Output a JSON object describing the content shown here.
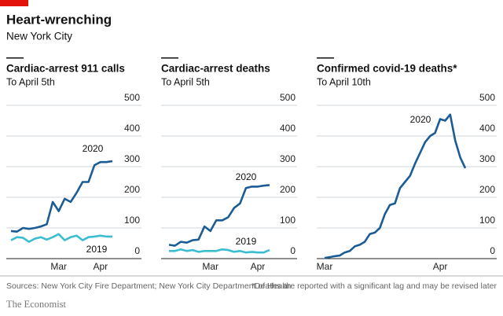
{
  "header": {
    "title": "Heart-wrenching",
    "subtitle": "New York City"
  },
  "chart_data": [
    {
      "type": "line",
      "title": "Cardiac-arrest 911 calls",
      "subtitle": "To April 5th",
      "categories": [
        null,
        null,
        null,
        null,
        null,
        null,
        null,
        null,
        "Mar",
        null,
        null,
        null,
        null,
        null,
        null,
        "Apr",
        null,
        null
      ],
      "series": [
        {
          "name": "2020",
          "color": "#1b5c95",
          "values": [
            90,
            88,
            100,
            97,
            100,
            105,
            112,
            185,
            155,
            195,
            185,
            215,
            250,
            250,
            305,
            315,
            315,
            318
          ]
        },
        {
          "name": "2019",
          "color": "#3bbdd1",
          "values": [
            60,
            70,
            68,
            55,
            65,
            70,
            62,
            70,
            80,
            60,
            70,
            75,
            60,
            70,
            72,
            75,
            72,
            72
          ]
        }
      ],
      "ylim": [
        0,
        500
      ],
      "yticks": [
        0,
        100,
        200,
        300,
        400,
        500
      ],
      "grid": true
    },
    {
      "type": "line",
      "title": "Cardiac-arrest deaths",
      "subtitle": "To April 5th",
      "categories": [
        null,
        null,
        null,
        null,
        null,
        null,
        null,
        "Mar",
        null,
        null,
        null,
        null,
        null,
        null,
        null,
        "Apr",
        null,
        null
      ],
      "series": [
        {
          "name": "2020",
          "color": "#1b5c95",
          "values": [
            45,
            42,
            55,
            52,
            60,
            62,
            105,
            90,
            125,
            125,
            135,
            165,
            180,
            230,
            235,
            235,
            238,
            240
          ]
        },
        {
          "name": "2019",
          "color": "#3bbdd1",
          "values": [
            25,
            25,
            30,
            25,
            28,
            22,
            25,
            25,
            25,
            30,
            28,
            22,
            25,
            20,
            22,
            20,
            20,
            28
          ]
        }
      ],
      "ylim": [
        0,
        500
      ],
      "yticks": [
        0,
        100,
        200,
        300,
        400,
        500
      ],
      "grid": true
    },
    {
      "type": "line",
      "title": "Confirmed covid-19 deaths*",
      "subtitle": "To April 10th",
      "categories": [
        "Mar",
        null,
        null,
        null,
        null,
        null,
        null,
        null,
        null,
        null,
        null,
        null,
        null,
        null,
        null,
        null,
        null,
        null,
        null,
        null,
        null,
        null,
        null,
        "Apr",
        null,
        null,
        null,
        null,
        null
      ],
      "series": [
        {
          "name": "2020",
          "color": "#1b5c95",
          "values": [
            2,
            5,
            8,
            10,
            20,
            25,
            40,
            45,
            55,
            80,
            85,
            100,
            145,
            175,
            180,
            230,
            250,
            270,
            310,
            345,
            380,
            400,
            410,
            455,
            450,
            470,
            385,
            330,
            295
          ]
        }
      ],
      "ylim": [
        0,
        500
      ],
      "yticks": [
        0,
        100,
        200,
        300,
        400,
        500
      ],
      "grid": true
    }
  ],
  "footer": {
    "source": "Sources: New York City Fire Department; New York City Department of Health",
    "note": "*Deaths are reported with a significant lag and may be revised later",
    "brand": "The Economist"
  }
}
